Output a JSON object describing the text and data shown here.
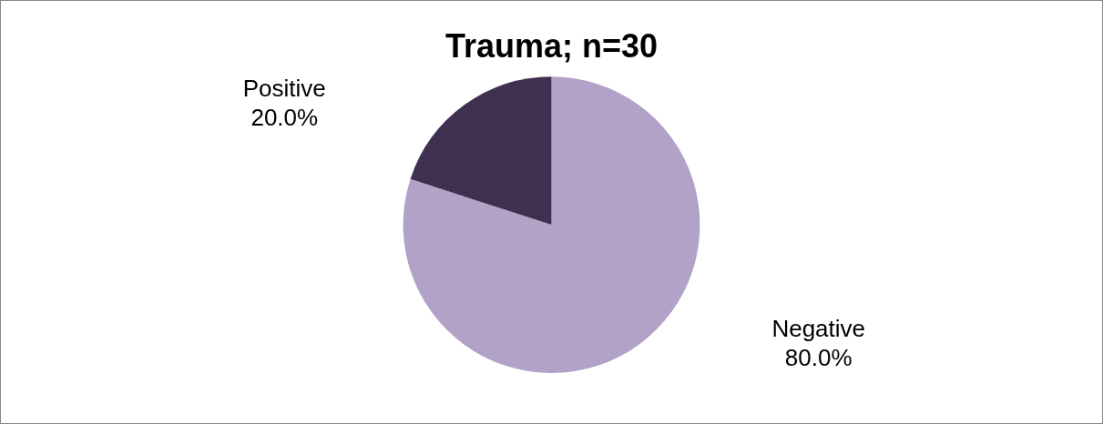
{
  "chart_data": {
    "type": "pie",
    "title": "Trauma; n=30",
    "categories": [
      "Negative",
      "Positive"
    ],
    "values": [
      80,
      20
    ],
    "colors": [
      "#b3a2c8",
      "#3f3050"
    ],
    "value_labels": [
      "80.0%",
      "20.0%"
    ],
    "legend": false
  }
}
